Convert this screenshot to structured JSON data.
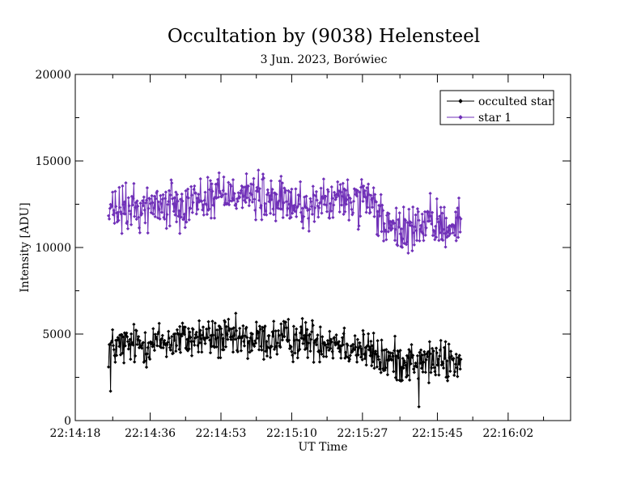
{
  "chart_data": {
    "type": "line",
    "title": "Occultation by (9038) Helensteel",
    "subtitle": "3 Jun. 2023, Borówiec",
    "xlabel": "UT Time",
    "ylabel": "Intensity [ADU]",
    "x_tick_labels": [
      "22:14:18",
      "22:14:36",
      "22:14:53",
      "22:15:10",
      "22:15:27",
      "22:15:45",
      "22:16:02"
    ],
    "x_tick_seconds": [
      80058,
      80076,
      80093,
      80110,
      80127,
      80145,
      80162
    ],
    "x_tick_minor_seconds": [
      80067,
      80084.5,
      80101.5,
      80118.5,
      80136,
      80153.5,
      80170.5
    ],
    "xlim_seconds": [
      80058,
      80177
    ],
    "ylim": [
      0,
      20000
    ],
    "y_ticks": [
      0,
      5000,
      10000,
      15000,
      20000
    ],
    "y_tick_labels": [
      "0",
      "5000",
      "10000",
      "15000",
      "20000"
    ],
    "legend_position": "top-right",
    "grid": false,
    "series": [
      {
        "name": "occulted star",
        "color": "#000000",
        "x_start_seconds": 80066,
        "x_step_seconds": 0.16,
        "segment_means": [
          [
            0,
            4200
          ],
          [
            70,
            4500
          ],
          [
            140,
            4800
          ],
          [
            210,
            4600
          ],
          [
            280,
            4700
          ],
          [
            340,
            4600
          ],
          [
            385,
            4100
          ],
          [
            412,
            3500
          ],
          [
            480,
            3400
          ],
          [
            530,
            3400
          ]
        ],
        "noise": 750,
        "count": 530
      },
      {
        "name": "star 1",
        "color": "#7030b8",
        "x_start_seconds": 80066,
        "x_step_seconds": 0.16,
        "segment_means": [
          [
            0,
            12000
          ],
          [
            70,
            12400
          ],
          [
            140,
            12800
          ],
          [
            190,
            13300
          ],
          [
            240,
            12700
          ],
          [
            300,
            12400
          ],
          [
            360,
            12800
          ],
          [
            400,
            12300
          ],
          [
            425,
            10800
          ],
          [
            460,
            11200
          ],
          [
            530,
            11400
          ]
        ],
        "noise": 850,
        "count": 530
      }
    ]
  }
}
